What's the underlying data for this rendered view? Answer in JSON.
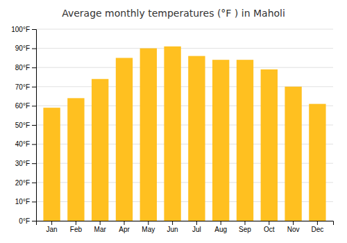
{
  "chart_data": {
    "type": "bar",
    "title": "Average monthly temperatures (°F ) in Maholi",
    "categories": [
      "Jan",
      "Feb",
      "Mar",
      "Apr",
      "May",
      "Jun",
      "Jul",
      "Aug",
      "Sep",
      "Oct",
      "Nov",
      "Dec"
    ],
    "values": [
      59,
      64,
      74,
      85,
      90,
      91,
      86,
      84,
      84,
      79,
      70,
      61
    ],
    "color": "#FFC020",
    "ylim": [
      0,
      100
    ],
    "yticks": [
      {
        "value": 0,
        "label": "0°F"
      },
      {
        "value": 10,
        "label": "10°F"
      },
      {
        "value": 20,
        "label": "20°F"
      },
      {
        "value": 30,
        "label": "30°F"
      },
      {
        "value": 40,
        "label": "40°F"
      },
      {
        "value": 50,
        "label": "50°F"
      },
      {
        "value": 60,
        "label": "60°F"
      },
      {
        "value": 70,
        "label": "70°F"
      },
      {
        "value": 80,
        "label": "80°F"
      },
      {
        "value": 90,
        "label": "90°F"
      },
      {
        "value": 100,
        "label": "100°F"
      }
    ],
    "grid": true
  }
}
